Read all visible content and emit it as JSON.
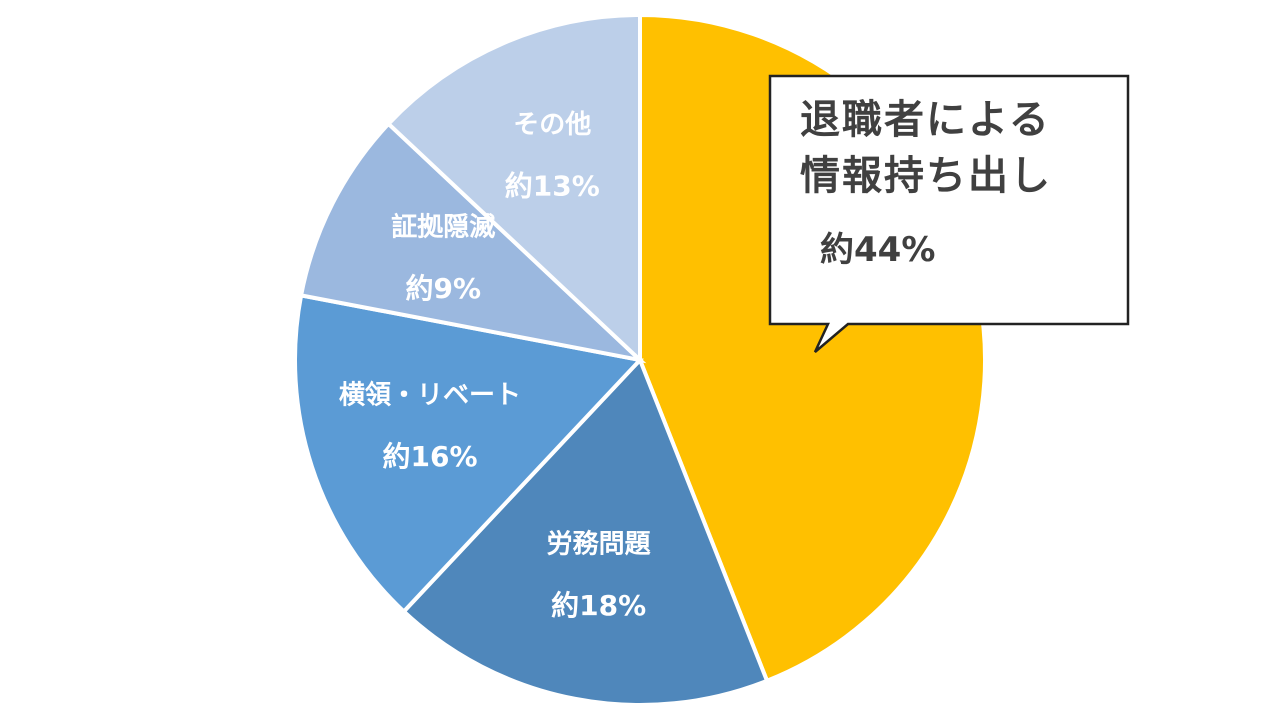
{
  "chart_data": {
    "type": "pie",
    "categories": [
      "退職者による情報持ち出し",
      "労務問題",
      "横領・リベート",
      "証拠隠滅",
      "その他"
    ],
    "values": [
      44,
      18,
      16,
      9,
      13
    ],
    "value_labels": [
      "約44%",
      "約18%",
      "約16%",
      "約9%",
      "約13%"
    ],
    "colors": [
      "#FFC000",
      "#4F87BB",
      "#5B9BD5",
      "#9BB8DF",
      "#BCCFE9"
    ]
  }
}
